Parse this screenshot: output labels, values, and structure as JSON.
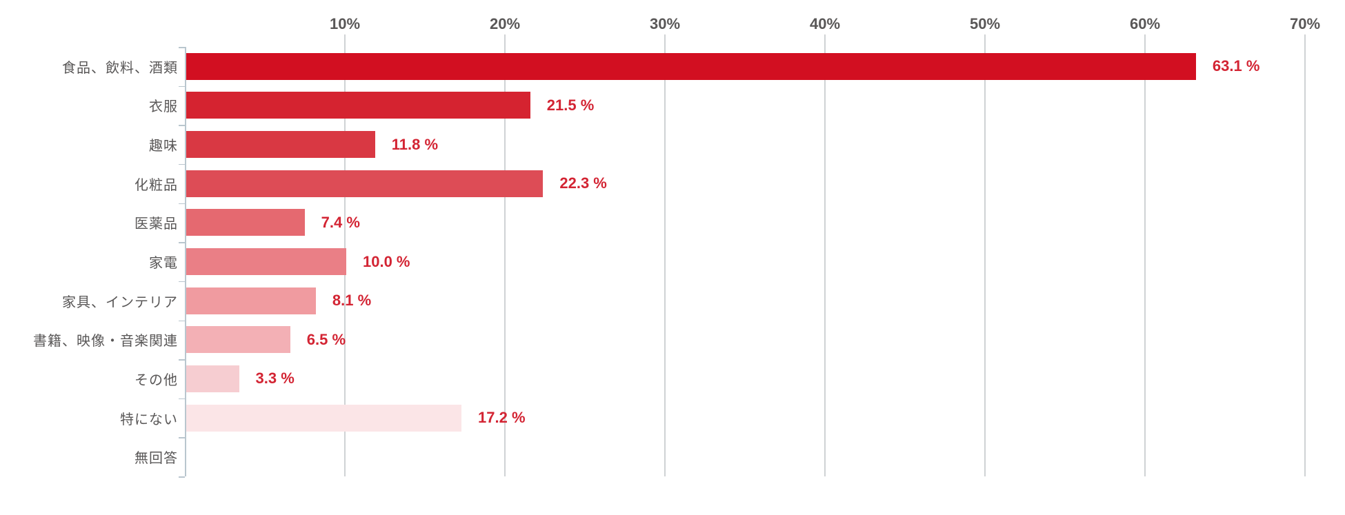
{
  "chart_data": {
    "type": "bar",
    "orientation": "horizontal",
    "title": "",
    "xlabel": "",
    "ylabel": "",
    "unit": "%",
    "xlim": [
      0,
      70
    ],
    "grid": true,
    "legend": false,
    "x_ticks": [
      "10%",
      "20%",
      "30%",
      "40%",
      "50%",
      "60%",
      "70%"
    ],
    "rows": [
      {
        "label": "食品、飲料、酒類",
        "value": 63.1,
        "value_label": "63.1 %",
        "color": "#d20f21"
      },
      {
        "label": "衣服",
        "value": 21.5,
        "value_label": "21.5 %",
        "color": "#d52330"
      },
      {
        "label": "趣味",
        "value": 11.8,
        "value_label": "11.8 %",
        "color": "#d93843"
      },
      {
        "label": "化粧品",
        "value": 22.3,
        "value_label": "22.3 %",
        "color": "#dd4c56"
      },
      {
        "label": "医薬品",
        "value": 7.4,
        "value_label": "7.4 %",
        "color": "#e56970"
      },
      {
        "label": "家電",
        "value": 10.0,
        "value_label": "10.0 %",
        "color": "#ea7f86"
      },
      {
        "label": "家具、インテリア",
        "value": 8.1,
        "value_label": "8.1 %",
        "color": "#f09ba0"
      },
      {
        "label": "書籍、映像・音楽関連",
        "value": 6.5,
        "value_label": "6.5 %",
        "color": "#f3b0b5"
      },
      {
        "label": "その他",
        "value": 3.3,
        "value_label": "3.3 %",
        "color": "#f6cdd1"
      },
      {
        "label": "特にない",
        "value": 17.2,
        "value_label": "17.2 %",
        "color": "#fbe5e7"
      },
      {
        "label": "無回答",
        "value": 0
      }
    ]
  },
  "colors": {
    "background": "#ffffff",
    "value_label": "#d32433",
    "category_label": "#595757",
    "tick_label": "#595757",
    "gridline": "#cfd2d4",
    "axis": "#b9c6ce",
    "bar_darkest": "#d20f21",
    "bar_lightest": "#fbe5e7"
  }
}
